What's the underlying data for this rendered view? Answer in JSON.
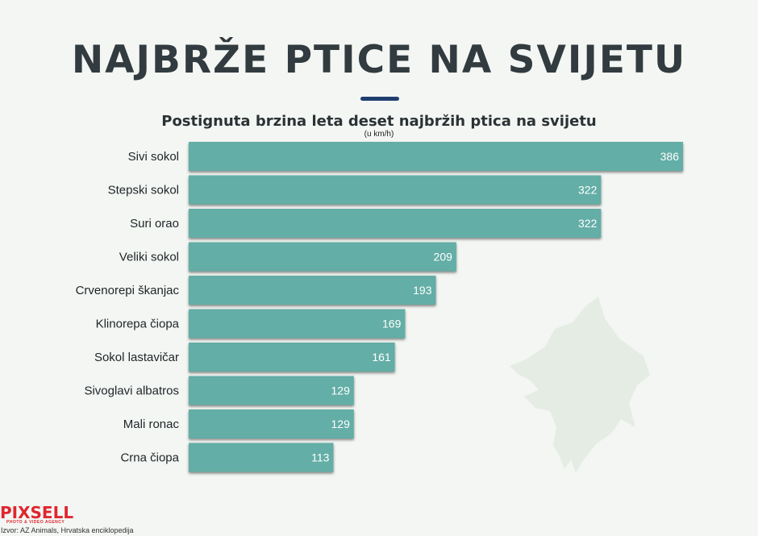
{
  "header": {
    "title": "NAJBRŽE PTICE NA SVIJETU"
  },
  "chart_data": {
    "type": "bar",
    "orientation": "horizontal",
    "title": "Postignuta brzina leta deset najbržih ptica na svijetu",
    "subtitle": "(u km/h)",
    "categories": [
      "Sivi sokol",
      "Stepski sokol",
      "Suri orao",
      "Veliki sokol",
      "Crvenorepi škanjac",
      "Klinorepa čiopa",
      "Sokol lastavičar",
      "Sivoglavi albatros",
      "Mali ronac",
      "Crna čiopa"
    ],
    "values": [
      386,
      322,
      322,
      209,
      193,
      169,
      161,
      129,
      129,
      113
    ],
    "data_labels": true,
    "grid": false,
    "bar_color": "#64aea6"
  },
  "footer": {
    "logo": "PIXSELL",
    "logo_tagline": "PHOTO & VIDEO AGENCY",
    "source": "Izvor: AZ Animals, Hrvatska enciklopedija"
  },
  "colors": {
    "background": "#f3f6f3",
    "title": "#323b3f",
    "accent": "#1e3e6e",
    "bar": "#64aea6",
    "logo": "#e0262e"
  }
}
